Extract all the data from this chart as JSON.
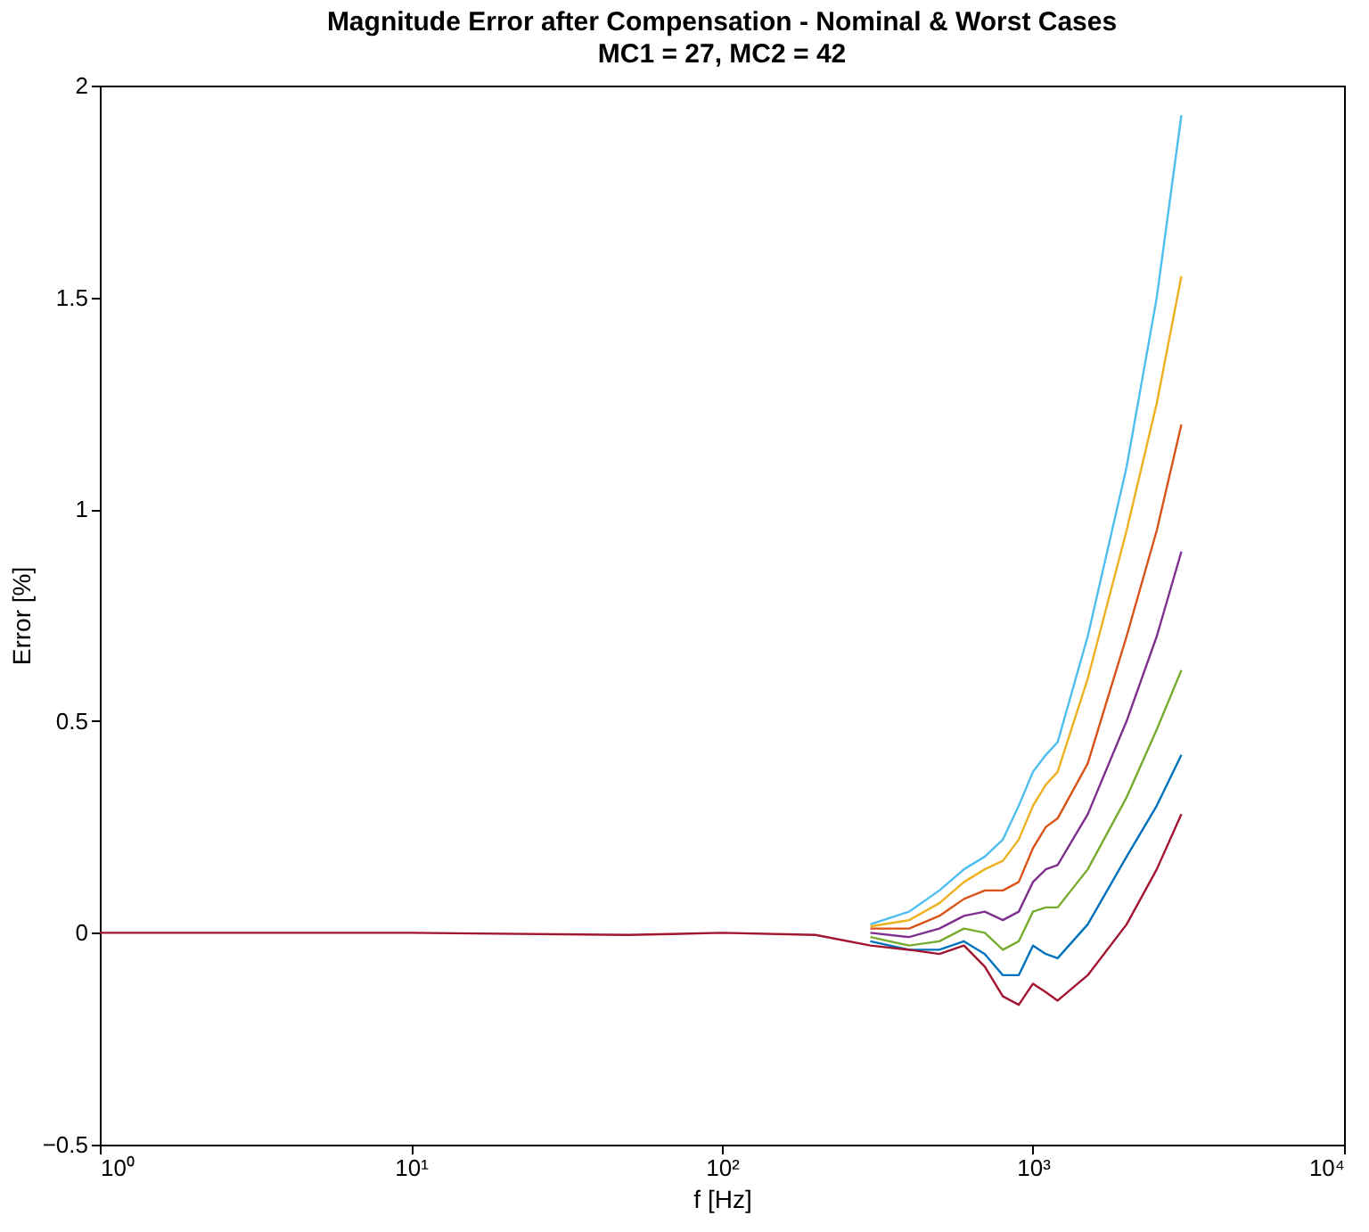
{
  "chart_data": {
    "type": "line",
    "title": "Magnitude Error after Compensation - Nominal & Worst Cases",
    "subtitle": "MC1 = 27, MC2 = 42",
    "xlabel": "f [Hz]",
    "ylabel": "Error [%]",
    "log": "x",
    "xlim": [
      1,
      10000
    ],
    "xticks": [
      {
        "value": 1,
        "label": "10⁰"
      },
      {
        "value": 10,
        "label": "10¹"
      },
      {
        "value": 100,
        "label": "10²"
      },
      {
        "value": 1000,
        "label": "10³"
      },
      {
        "value": 10000,
        "label": "10⁴"
      }
    ],
    "ylim": [
      -0.5,
      2
    ],
    "yticks": [
      -0.5,
      0,
      0.5,
      1,
      1.5,
      2
    ],
    "grid": false,
    "legend": false,
    "line_style": "solid",
    "marker": "none",
    "x": [
      1,
      10,
      50,
      100,
      200,
      300,
      400,
      500,
      600,
      700,
      800,
      900,
      1000,
      1100,
      1200,
      1500,
      2000,
      2500,
      3000
    ],
    "series": [
      {
        "color": "#4dbeee",
        "values": [
          null,
          null,
          null,
          null,
          null,
          0.02,
          0.05,
          0.1,
          0.15,
          0.18,
          0.22,
          0.3,
          0.38,
          0.42,
          0.45,
          0.7,
          1.1,
          1.5,
          1.93
        ]
      },
      {
        "color": "#edb120",
        "values": [
          null,
          null,
          null,
          null,
          null,
          0.015,
          0.03,
          0.07,
          0.12,
          0.15,
          0.17,
          0.22,
          0.3,
          0.35,
          0.38,
          0.6,
          0.95,
          1.25,
          1.55
        ]
      },
      {
        "color": "#d95319",
        "values": [
          null,
          null,
          null,
          null,
          null,
          0.01,
          0.01,
          0.04,
          0.08,
          0.1,
          0.1,
          0.12,
          0.2,
          0.25,
          0.27,
          0.4,
          0.7,
          0.95,
          1.2
        ]
      },
      {
        "color": "#7e2f8e",
        "values": [
          null,
          null,
          null,
          null,
          null,
          0,
          -0.01,
          0.01,
          0.04,
          0.05,
          0.03,
          0.05,
          0.12,
          0.15,
          0.16,
          0.28,
          0.5,
          0.7,
          0.9
        ]
      },
      {
        "color": "#77ac30",
        "values": [
          null,
          null,
          null,
          null,
          null,
          -0.01,
          -0.03,
          -0.02,
          0.01,
          0,
          -0.04,
          -0.02,
          0.05,
          0.06,
          0.06,
          0.15,
          0.32,
          0.48,
          0.62
        ]
      },
      {
        "color": "#0072bd",
        "values": [
          null,
          null,
          null,
          null,
          null,
          -0.02,
          -0.04,
          -0.04,
          -0.02,
          -0.05,
          -0.1,
          -0.1,
          -0.03,
          -0.05,
          -0.06,
          0.02,
          0.18,
          0.3,
          0.42
        ]
      },
      {
        "color": "#a2142f",
        "values": [
          0,
          0,
          -0.005,
          0,
          -0.005,
          -0.03,
          -0.04,
          -0.05,
          -0.03,
          -0.08,
          -0.15,
          -0.17,
          -0.12,
          -0.14,
          -0.16,
          -0.1,
          0.02,
          0.15,
          0.28
        ]
      }
    ]
  }
}
